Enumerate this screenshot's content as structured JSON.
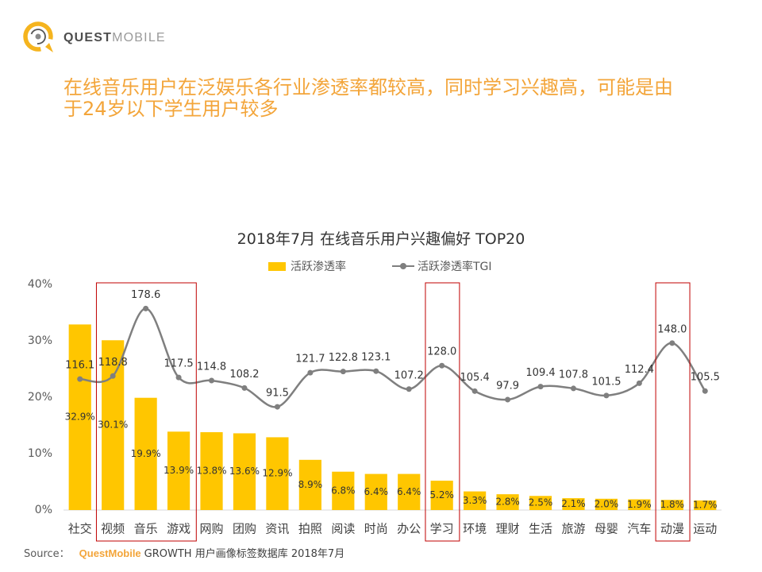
{
  "logo": {
    "word_bold": "QUEST",
    "word_light": "MOBILE"
  },
  "headline": {
    "lines": [
      "在线音乐用户在泛娱乐各行业渗透率都较高，同时学习兴趣高，可能是由",
      "于24岁以下学生用户较多"
    ]
  },
  "colors": {
    "accent": "#F3A53A",
    "bar": "#FFC600",
    "line": "#7F7F7F",
    "highlight_box": "#C00000"
  },
  "chart_data": {
    "type": "bar",
    "title": "2018年7月 在线音乐用户兴趣偏好 TOP20",
    "categories": [
      "社交",
      "视频",
      "音乐",
      "游戏",
      "网购",
      "团购",
      "资讯",
      "拍照",
      "阅读",
      "时尚",
      "办公",
      "学习",
      "环境",
      "理财",
      "生活",
      "旅游",
      "母婴",
      "汽车",
      "动漫",
      "运动"
    ],
    "series": [
      {
        "name": "活跃渗透率",
        "type": "bar",
        "axis": "left",
        "unit": "%",
        "values": [
          32.9,
          30.1,
          19.9,
          13.9,
          13.8,
          13.6,
          12.9,
          8.9,
          6.8,
          6.4,
          6.4,
          5.2,
          3.3,
          2.8,
          2.5,
          2.1,
          2.0,
          1.9,
          1.8,
          1.7
        ]
      },
      {
        "name": "活跃渗透率TGI",
        "type": "line",
        "axis": "right",
        "smooth": true,
        "values": [
          116.1,
          118.8,
          178.6,
          117.5,
          114.8,
          108.2,
          91.5,
          121.7,
          122.8,
          123.1,
          107.2,
          128.0,
          105.4,
          97.9,
          109.4,
          107.8,
          101.5,
          112.4,
          148.0,
          105.5
        ]
      }
    ],
    "ylim": [
      0,
      40
    ],
    "y_tick_labels": [
      "0%",
      "10%",
      "20%",
      "30%",
      "40%"
    ],
    "y2lim": [
      0,
      200
    ],
    "grid": false,
    "legend": "top",
    "data_labels": true,
    "highlighted_categories": [
      [
        "视频",
        "音乐",
        "游戏"
      ],
      [
        "学习"
      ],
      [
        "动漫"
      ]
    ]
  },
  "source": {
    "label": "Source：",
    "brand": "QuestMobile",
    "text": "GROWTH 用户画像标签数据库 2018年7月"
  }
}
